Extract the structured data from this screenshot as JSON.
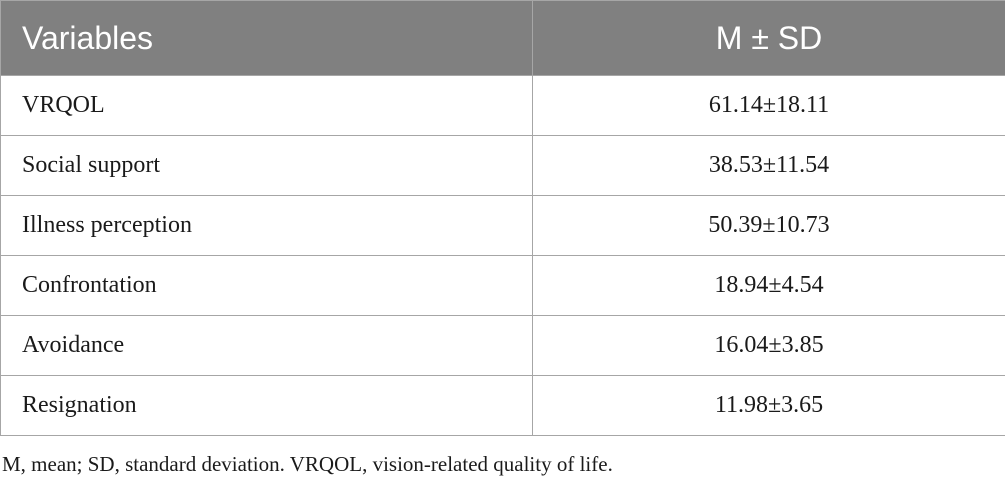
{
  "table": {
    "headers": [
      "Variables",
      "M ± SD"
    ],
    "rows": [
      {
        "variable": "VRQOL",
        "value": "61.14±18.11"
      },
      {
        "variable": "Social support",
        "value": "38.53±11.54"
      },
      {
        "variable": "Illness perception",
        "value": "50.39±10.73"
      },
      {
        "variable": "Confrontation",
        "value": "18.94±4.54"
      },
      {
        "variable": "Avoidance",
        "value": "16.04±3.85"
      },
      {
        "variable": "Resignation",
        "value": "11.98±3.65"
      }
    ]
  },
  "footnote": "M, mean; SD, standard deviation. VRQOL, vision-related quality of life.",
  "colors": {
    "header_bg": "#808080",
    "header_text": "#ffffff",
    "border": "#a6a6a6",
    "body_text": "#1a1a1a"
  }
}
